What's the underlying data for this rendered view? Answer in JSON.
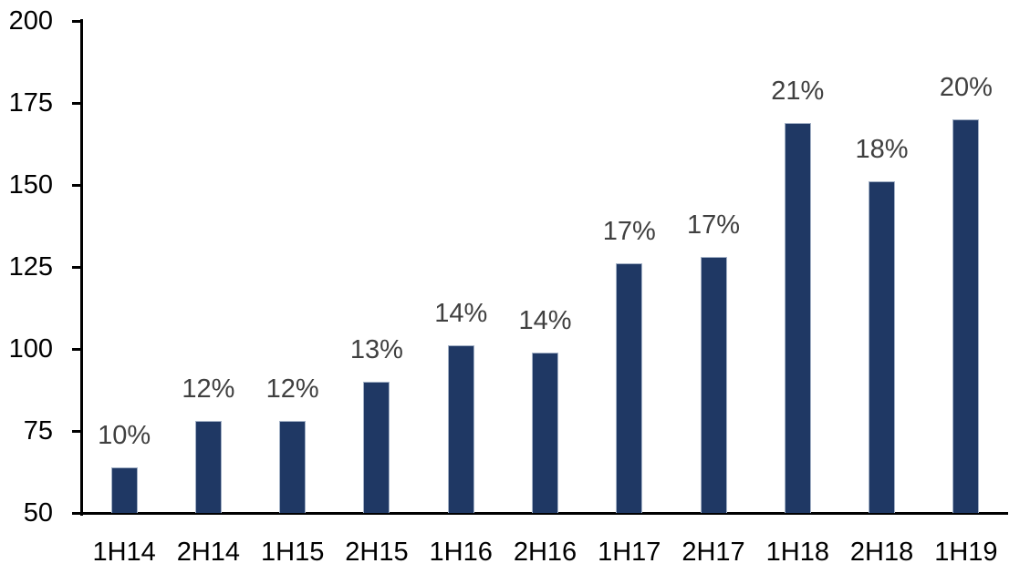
{
  "chart_data": {
    "type": "bar",
    "title": "",
    "xlabel": "",
    "ylabel": "",
    "categories": [
      "1H14",
      "2H14",
      "1H15",
      "2H15",
      "1H16",
      "2H16",
      "1H17",
      "2H17",
      "1H18",
      "2H18",
      "1H19"
    ],
    "values": [
      64,
      78,
      78,
      90,
      101,
      99,
      126,
      128,
      169,
      151,
      170
    ],
    "bar_labels": [
      "10%",
      "12%",
      "12%",
      "13%",
      "14%",
      "14%",
      "17%",
      "17%",
      "21%",
      "18%",
      "20%"
    ],
    "ylim": [
      50,
      200
    ],
    "y_ticks": [
      50,
      75,
      100,
      125,
      150,
      175,
      200
    ],
    "grid": false,
    "legend": false,
    "colors": {
      "bar_fill": "#1F3864",
      "bar_border": "#A3B1C6",
      "data_label": "#404040",
      "axis": "#000000",
      "tick_label": "#000000",
      "background": "#FFFFFF"
    }
  }
}
